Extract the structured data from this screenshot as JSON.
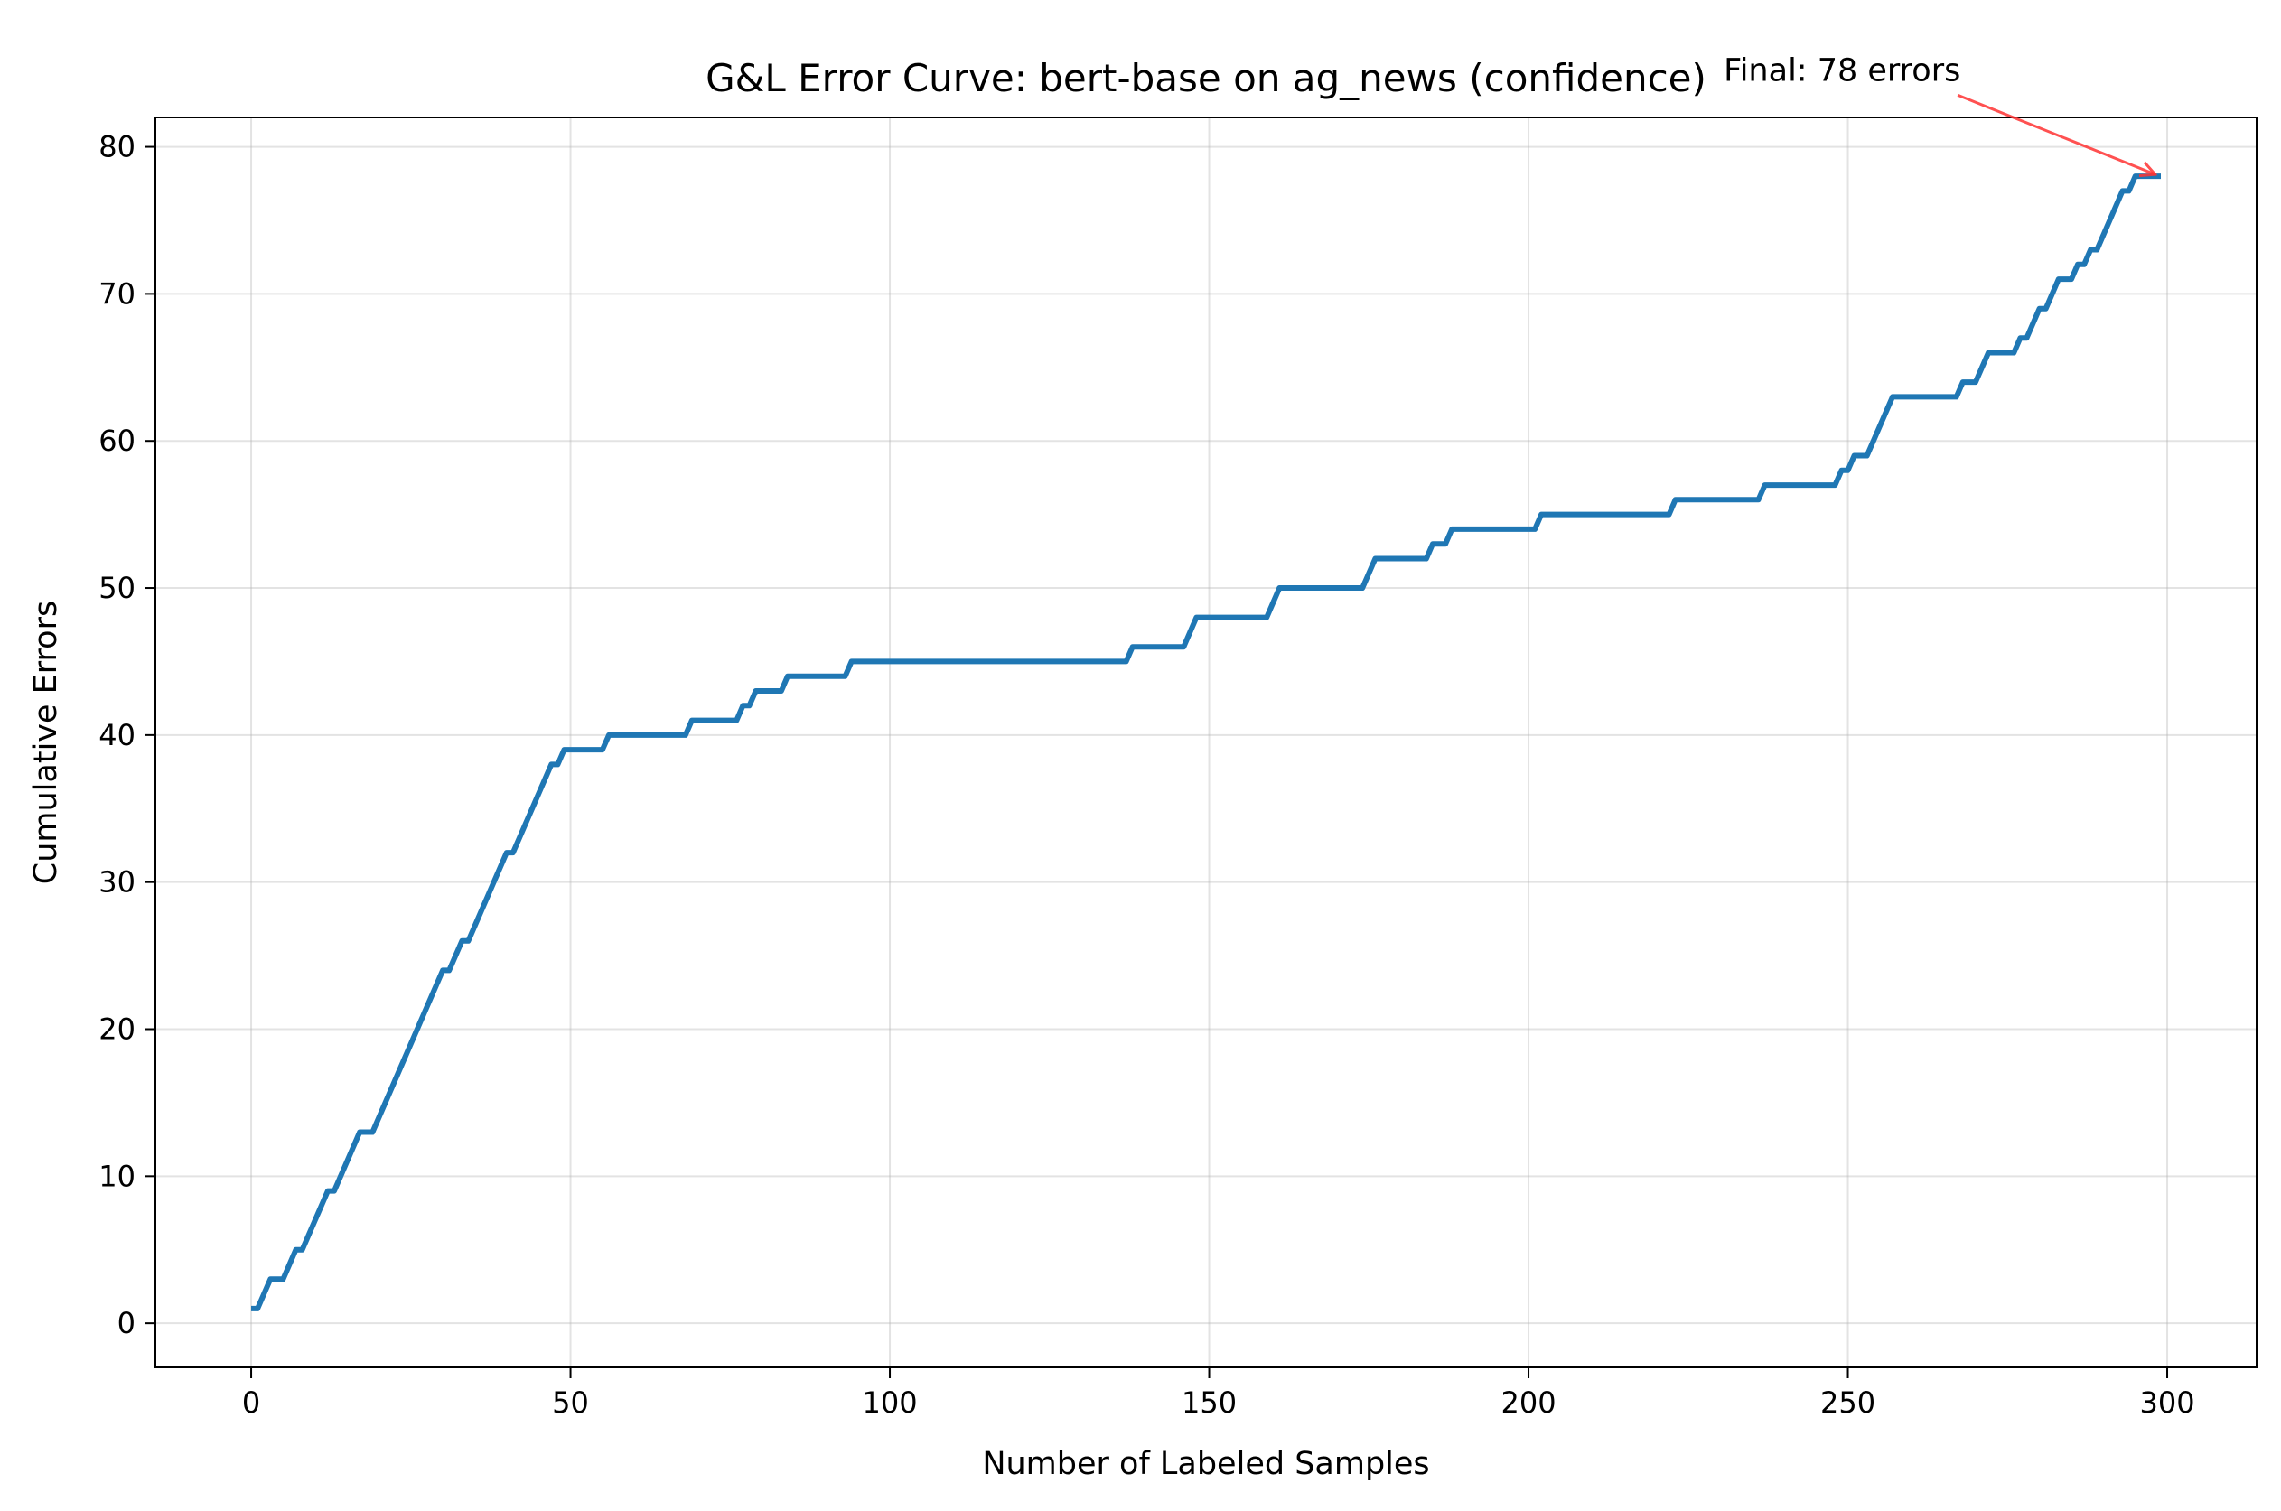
{
  "chart_data": {
    "type": "line",
    "title": "G&L Error Curve: bert-base on ag_news (confidence)",
    "xlabel": "Number of Labeled Samples",
    "ylabel": "Cumulative Errors",
    "xlim": [
      -15,
      314
    ],
    "ylim": [
      -3,
      82
    ],
    "xticks": [
      0,
      50,
      100,
      150,
      200,
      250,
      300
    ],
    "yticks": [
      0,
      10,
      20,
      30,
      40,
      50,
      60,
      70,
      80
    ],
    "grid": true,
    "line_color": "#1f77b4",
    "annotation": {
      "text": "Final: 78 errors",
      "target": [
        297,
        78
      ],
      "text_anchor": [
        230,
        84.5
      ],
      "arrow_color": "#ff3333"
    },
    "series": [
      {
        "steps": [
          [
            0,
            1
          ],
          [
            1,
            1
          ],
          [
            3,
            3
          ],
          [
            5,
            3
          ],
          [
            7,
            5
          ],
          [
            8,
            5
          ],
          [
            12,
            9
          ],
          [
            13,
            9
          ],
          [
            17,
            13
          ],
          [
            19,
            13
          ],
          [
            30,
            24
          ],
          [
            31,
            24
          ],
          [
            33,
            26
          ],
          [
            34,
            26
          ],
          [
            40,
            32
          ],
          [
            41,
            32
          ],
          [
            47,
            38
          ],
          [
            48,
            38
          ],
          [
            49,
            39
          ],
          [
            55,
            39
          ],
          [
            56,
            40
          ],
          [
            68,
            40
          ],
          [
            69,
            41
          ],
          [
            76,
            41
          ],
          [
            77,
            42
          ],
          [
            78,
            42
          ],
          [
            79,
            43
          ],
          [
            83,
            43
          ],
          [
            84,
            44
          ],
          [
            93,
            44
          ],
          [
            94,
            45
          ],
          [
            137,
            45
          ],
          [
            138,
            46
          ],
          [
            146,
            46
          ],
          [
            148,
            48
          ],
          [
            159,
            48
          ],
          [
            161,
            50
          ],
          [
            174,
            50
          ],
          [
            176,
            52
          ],
          [
            184,
            52
          ],
          [
            185,
            53
          ],
          [
            187,
            53
          ],
          [
            188,
            54
          ],
          [
            201,
            54
          ],
          [
            202,
            55
          ],
          [
            222,
            55
          ],
          [
            223,
            56
          ],
          [
            236,
            56
          ],
          [
            237,
            57
          ],
          [
            248,
            57
          ],
          [
            249,
            58
          ],
          [
            250,
            58
          ],
          [
            251,
            59
          ],
          [
            253,
            59
          ],
          [
            257,
            63
          ],
          [
            267,
            63
          ],
          [
            268,
            64
          ],
          [
            270,
            64
          ],
          [
            272,
            66
          ],
          [
            276,
            66
          ],
          [
            277,
            67
          ],
          [
            278,
            67
          ],
          [
            280,
            69
          ],
          [
            281,
            69
          ],
          [
            283,
            71
          ],
          [
            285,
            71
          ],
          [
            286,
            72
          ],
          [
            287,
            72
          ],
          [
            288,
            73
          ],
          [
            289,
            73
          ],
          [
            293,
            77
          ],
          [
            294,
            77
          ],
          [
            295,
            78
          ],
          [
            299,
            78
          ]
        ]
      }
    ]
  }
}
